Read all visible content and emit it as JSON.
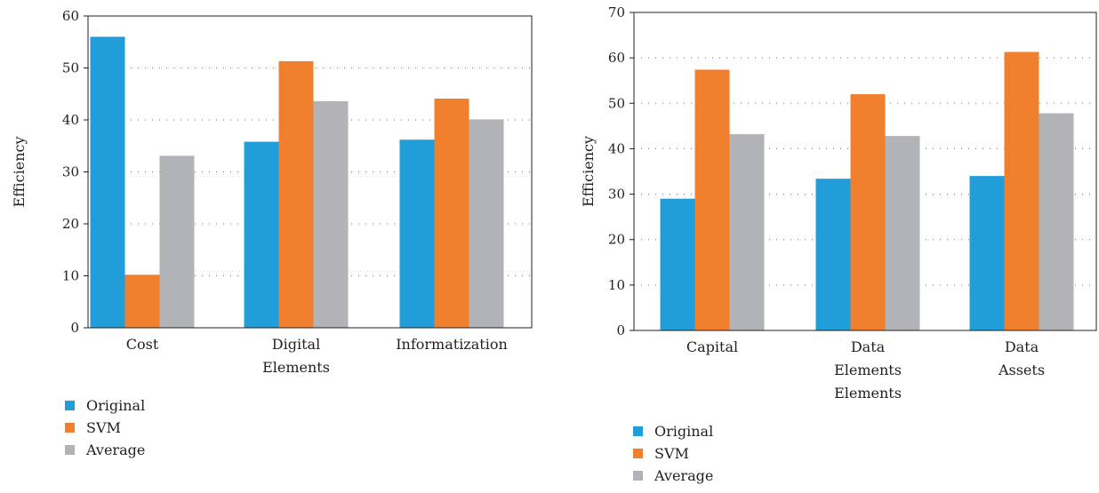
{
  "colors": {
    "Original": "#219ed9",
    "SVM": "#f07f2e",
    "Average": "#b1b3b6"
  },
  "chart_data": [
    {
      "type": "bar",
      "ylabel": "Efficiency",
      "ylim": [
        0,
        60
      ],
      "yticks": [
        0,
        10,
        20,
        30,
        40,
        50,
        60
      ],
      "grid": true,
      "legend_placement": "bottom-left",
      "categories": [
        [
          "Cost"
        ],
        [
          "Digital",
          "Elements"
        ],
        [
          "Informatization"
        ]
      ],
      "series": [
        {
          "name": "Original",
          "values": [
            56,
            35.8,
            36.2
          ]
        },
        {
          "name": "SVM",
          "values": [
            10.2,
            51.3,
            44.1
          ]
        },
        {
          "name": "Average",
          "values": [
            33.1,
            43.6,
            40.1
          ]
        }
      ]
    },
    {
      "type": "bar",
      "ylabel": "Efficiency",
      "ylim": [
        0,
        70
      ],
      "yticks": [
        0,
        10,
        20,
        30,
        40,
        50,
        60,
        70
      ],
      "grid": true,
      "legend_placement": "bottom-left",
      "categories": [
        [
          "Capital"
        ],
        [
          "Data",
          "Elements",
          "Elements"
        ],
        [
          "Data",
          "Assets"
        ]
      ],
      "series": [
        {
          "name": "Original",
          "values": [
            29,
            33.4,
            34
          ]
        },
        {
          "name": "SVM",
          "values": [
            57.4,
            52,
            61.3
          ]
        },
        {
          "name": "Average",
          "values": [
            43.2,
            42.8,
            47.8
          ]
        }
      ]
    }
  ]
}
